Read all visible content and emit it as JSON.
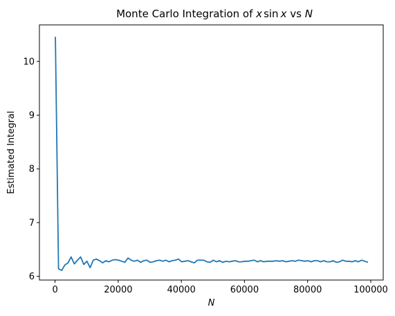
{
  "chart_data": {
    "type": "line",
    "title_prefix": "Monte Carlo Integration of ",
    "title_math_x1": "x",
    "title_math_sin": "sin",
    "title_math_x2": "x",
    "title_vs": " vs ",
    "title_math_n": "N",
    "xlabel": "N",
    "ylabel": "Estimated Integral",
    "xlim": [
      -4950,
      103950
    ],
    "ylim": [
      5.93,
      10.68
    ],
    "grid": false,
    "xticks": [
      0,
      20000,
      40000,
      60000,
      80000,
      100000
    ],
    "xtick_labels": [
      "0",
      "20000",
      "40000",
      "60000",
      "80000",
      "100000"
    ],
    "yticks": [
      6,
      7,
      8,
      9,
      10
    ],
    "ytick_labels": [
      "6",
      "7",
      "8",
      "9",
      "10"
    ],
    "series": [
      {
        "color": "#1f77b4",
        "x": [
          100,
          1100,
          2100,
          3100,
          4100,
          5100,
          6100,
          7100,
          8100,
          9100,
          10100,
          11100,
          12100,
          13100,
          14100,
          15100,
          16100,
          17100,
          18100,
          19100,
          20100,
          21100,
          22100,
          23100,
          24100,
          25100,
          26100,
          27100,
          28100,
          29100,
          30100,
          31100,
          32100,
          33100,
          34100,
          35100,
          36100,
          37100,
          38100,
          39100,
          40100,
          41100,
          42100,
          43100,
          44100,
          45100,
          46100,
          47100,
          48100,
          49100,
          50100,
          51100,
          52100,
          53100,
          54100,
          55100,
          56100,
          57100,
          58100,
          59100,
          60100,
          61100,
          62100,
          63100,
          64100,
          65100,
          66100,
          67100,
          68100,
          69100,
          70100,
          71100,
          72100,
          73100,
          74100,
          75100,
          76100,
          77100,
          78100,
          79100,
          80100,
          81100,
          82100,
          83100,
          84100,
          85100,
          86100,
          87100,
          88100,
          89100,
          90100,
          91100,
          92100,
          93100,
          94100,
          95100,
          96100,
          97100,
          98100,
          99100
        ],
        "y": [
          10.46,
          6.14,
          6.11,
          6.21,
          6.25,
          6.36,
          6.23,
          6.3,
          6.36,
          6.22,
          6.28,
          6.16,
          6.3,
          6.32,
          6.29,
          6.25,
          6.29,
          6.27,
          6.3,
          6.31,
          6.3,
          6.28,
          6.26,
          6.34,
          6.3,
          6.28,
          6.3,
          6.26,
          6.29,
          6.3,
          6.26,
          6.27,
          6.29,
          6.3,
          6.28,
          6.3,
          6.27,
          6.29,
          6.3,
          6.32,
          6.27,
          6.28,
          6.29,
          6.27,
          6.25,
          6.3,
          6.3,
          6.3,
          6.27,
          6.26,
          6.3,
          6.27,
          6.29,
          6.26,
          6.28,
          6.27,
          6.28,
          6.29,
          6.27,
          6.27,
          6.28,
          6.28,
          6.29,
          6.3,
          6.27,
          6.29,
          6.27,
          6.28,
          6.28,
          6.28,
          6.29,
          6.28,
          6.29,
          6.27,
          6.28,
          6.29,
          6.28,
          6.3,
          6.29,
          6.28,
          6.29,
          6.27,
          6.29,
          6.29,
          6.27,
          6.29,
          6.27,
          6.27,
          6.29,
          6.26,
          6.27,
          6.3,
          6.28,
          6.28,
          6.27,
          6.29,
          6.27,
          6.3,
          6.28,
          6.26
        ]
      }
    ]
  }
}
